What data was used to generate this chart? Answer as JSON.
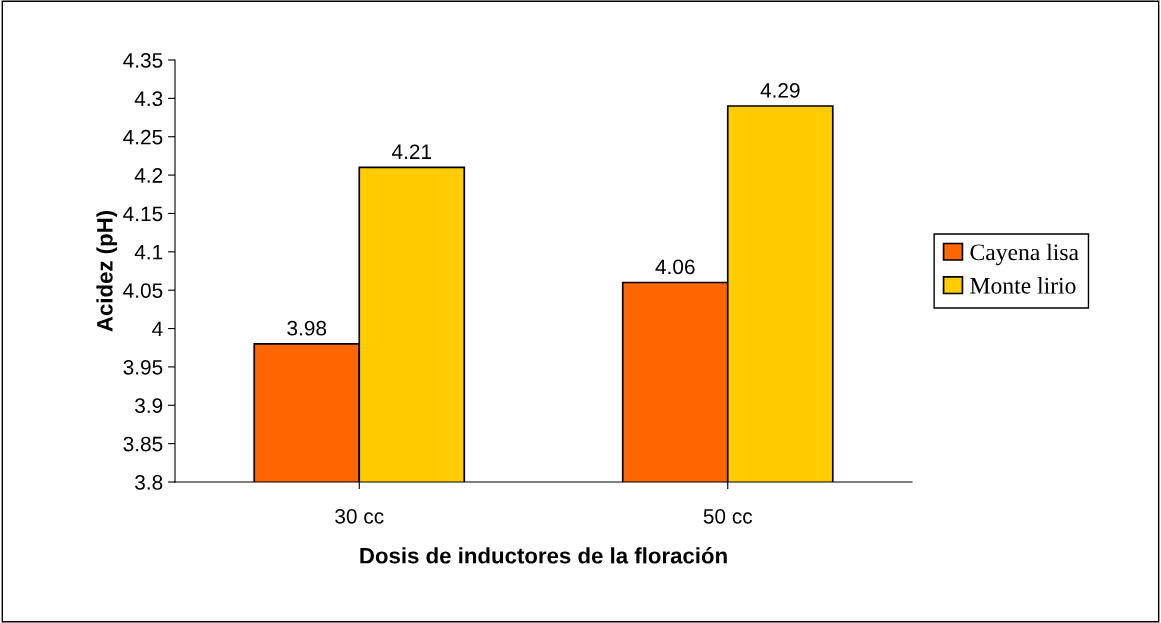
{
  "chart_data": {
    "type": "bar",
    "xlabel": "Dosis de inductores de la floración",
    "ylabel": "Acidez (pH)",
    "categories": [
      "30 cc",
      "50 cc"
    ],
    "series": [
      {
        "name": "Cayena lisa",
        "color": "#ff6600",
        "values": [
          3.98,
          4.06
        ]
      },
      {
        "name": "Monte lirio",
        "color": "#ffcc00",
        "values": [
          4.21,
          4.29
        ]
      }
    ],
    "ylim": [
      3.8,
      4.35
    ],
    "yticks": [
      3.8,
      3.85,
      3.9,
      3.95,
      4,
      4.05,
      4.1,
      4.15,
      4.2,
      4.25,
      4.3,
      4.35
    ],
    "data_labels": true,
    "legend": "right",
    "grid": false
  }
}
